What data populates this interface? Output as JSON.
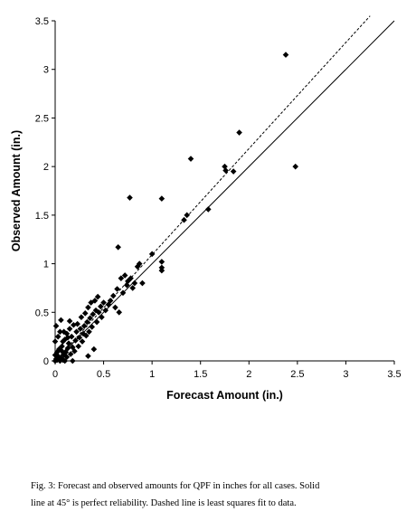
{
  "chart_data": {
    "type": "scatter",
    "xlabel": "Forecast Amount (in.)",
    "ylabel": "Observed Amount (in.)",
    "xlim": [
      0,
      3.5
    ],
    "ylim": [
      0,
      3.5
    ],
    "xticks": [
      "0",
      "0.5",
      "1",
      "1.5",
      "2",
      "2.5",
      "3",
      "3.5"
    ],
    "yticks": [
      "0",
      "0.5",
      "1",
      "1.5",
      "2",
      "2.5",
      "3",
      "3.5"
    ],
    "grid": false,
    "marker": "diamond",
    "marker_color": "#000000",
    "lines": [
      {
        "style": "solid",
        "x": [
          0,
          3.5
        ],
        "y": [
          0,
          3.5
        ]
      },
      {
        "style": "dashed",
        "x": [
          0,
          3.25
        ],
        "y": [
          0,
          3.55
        ]
      }
    ],
    "points": [
      [
        0.0,
        0.0
      ],
      [
        0.01,
        0.02
      ],
      [
        0.02,
        0.01
      ],
      [
        0.03,
        0.05
      ],
      [
        0.0,
        0.06
      ],
      [
        0.05,
        0.0
      ],
      [
        0.06,
        0.03
      ],
      [
        0.02,
        0.09
      ],
      [
        0.08,
        0.01
      ],
      [
        0.04,
        0.12
      ],
      [
        0.09,
        0.06
      ],
      [
        0.1,
        0.0
      ],
      [
        0.11,
        0.09
      ],
      [
        0.07,
        0.15
      ],
      [
        0.12,
        0.04
      ],
      [
        0.13,
        0.13
      ],
      [
        0.0,
        0.2
      ],
      [
        0.03,
        0.25
      ],
      [
        0.05,
        0.3
      ],
      [
        0.01,
        0.36
      ],
      [
        0.06,
        0.42
      ],
      [
        0.08,
        0.2
      ],
      [
        0.1,
        0.22
      ],
      [
        0.12,
        0.28
      ],
      [
        0.14,
        0.18
      ],
      [
        0.15,
        0.33
      ],
      [
        0.16,
        0.07
      ],
      [
        0.17,
        0.25
      ],
      [
        0.18,
        0.0
      ],
      [
        0.2,
        0.1
      ],
      [
        0.21,
        0.21
      ],
      [
        0.22,
        0.3
      ],
      [
        0.23,
        0.38
      ],
      [
        0.24,
        0.15
      ],
      [
        0.25,
        0.24
      ],
      [
        0.26,
        0.33
      ],
      [
        0.27,
        0.45
      ],
      [
        0.28,
        0.2
      ],
      [
        0.29,
        0.28
      ],
      [
        0.3,
        0.36
      ],
      [
        0.31,
        0.49
      ],
      [
        0.32,
        0.26
      ],
      [
        0.33,
        0.4
      ],
      [
        0.34,
        0.55
      ],
      [
        0.35,
        0.3
      ],
      [
        0.36,
        0.44
      ],
      [
        0.37,
        0.6
      ],
      [
        0.38,
        0.35
      ],
      [
        0.39,
        0.48
      ],
      [
        0.4,
        0.12
      ],
      [
        0.41,
        0.62
      ],
      [
        0.42,
        0.52
      ],
      [
        0.43,
        0.4
      ],
      [
        0.44,
        0.66
      ],
      [
        0.45,
        0.5
      ],
      [
        0.47,
        0.56
      ],
      [
        0.48,
        0.45
      ],
      [
        0.5,
        0.6
      ],
      [
        0.52,
        0.52
      ],
      [
        0.55,
        0.58
      ],
      [
        0.57,
        0.62
      ],
      [
        0.6,
        0.67
      ],
      [
        0.62,
        0.55
      ],
      [
        0.64,
        0.74
      ],
      [
        0.65,
        1.17
      ],
      [
        0.66,
        0.5
      ],
      [
        0.68,
        0.85
      ],
      [
        0.7,
        0.7
      ],
      [
        0.72,
        0.88
      ],
      [
        0.74,
        0.78
      ],
      [
        0.75,
        0.82
      ],
      [
        0.77,
        1.68
      ],
      [
        0.78,
        0.85
      ],
      [
        0.8,
        0.75
      ],
      [
        0.82,
        0.8
      ],
      [
        0.85,
        0.97
      ],
      [
        0.87,
        1.0
      ],
      [
        0.9,
        0.8
      ],
      [
        1.0,
        1.1
      ],
      [
        1.1,
        1.67
      ],
      [
        1.1,
        1.02
      ],
      [
        1.1,
        0.96
      ],
      [
        1.1,
        0.93
      ],
      [
        1.33,
        1.45
      ],
      [
        1.36,
        1.5
      ],
      [
        1.4,
        2.08
      ],
      [
        1.58,
        1.56
      ],
      [
        1.75,
        2.0
      ],
      [
        1.76,
        1.96
      ],
      [
        1.84,
        1.95
      ],
      [
        1.9,
        2.35
      ],
      [
        2.38,
        3.15
      ],
      [
        2.48,
        2.0
      ],
      [
        0.34,
        0.05
      ],
      [
        0.18,
        0.14
      ],
      [
        0.15,
        0.41
      ],
      [
        0.19,
        0.37
      ],
      [
        0.09,
        0.3
      ],
      [
        0.13,
        0.24
      ],
      [
        0.07,
        0.1
      ]
    ]
  },
  "caption": {
    "line1": "Fig. 3:  Forecast and observed amounts for QPF in inches for all cases.  Solid",
    "line2": "line at 45° is perfect reliability.  Dashed line is least squares fit to data."
  }
}
